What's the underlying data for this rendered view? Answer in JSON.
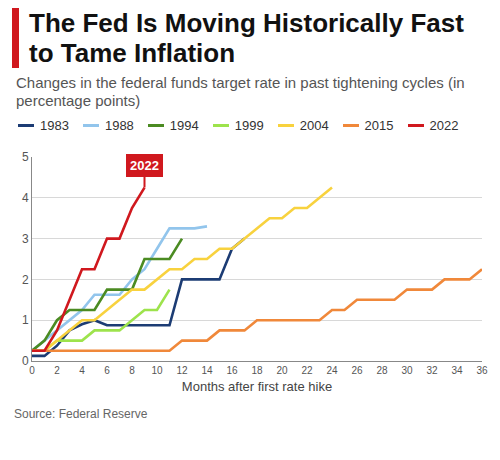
{
  "chart_data": {
    "type": "line",
    "title": "The Fed Is Moving Historically Fast to Tame Inflation",
    "subtitle": "Changes in the federal funds target rate in past tightening cycles (in percentage points)",
    "x_label": "Months after first rate hike",
    "source": "Source: Federal Reserve",
    "xlim": [
      0,
      36
    ],
    "xticks": [
      0,
      2,
      4,
      6,
      8,
      10,
      12,
      14,
      16,
      18,
      20,
      22,
      24,
      26,
      28,
      30,
      32,
      34,
      36
    ],
    "ylim": [
      0,
      5
    ],
    "yticks": [
      0,
      1,
      2,
      3,
      4,
      5
    ],
    "grid": true,
    "legend": "top",
    "series": [
      {
        "name": "1983",
        "color": "#1c3c74",
        "x": [
          0,
          1,
          2,
          3,
          4,
          5,
          6,
          7,
          8,
          9,
          10,
          11,
          12,
          13,
          14,
          15,
          16,
          17
        ],
        "values": [
          0.125,
          0.125,
          0.375,
          0.75,
          0.9,
          1.0,
          0.875,
          0.875,
          0.875,
          0.875,
          0.875,
          0.875,
          2.0,
          2.0,
          2.0,
          2.0,
          2.75,
          3.0
        ]
      },
      {
        "name": "1988",
        "color": "#92c5ec",
        "x": [
          0,
          1,
          2,
          3,
          4,
          5,
          6,
          7,
          8,
          9,
          10,
          11,
          12,
          13,
          14
        ],
        "values": [
          0.25,
          0.5,
          0.75,
          1.0,
          1.25,
          1.625,
          1.625,
          1.625,
          2.0,
          2.25,
          2.75,
          3.25,
          3.25,
          3.25,
          3.3
        ]
      },
      {
        "name": "1994",
        "color": "#4b8b22",
        "x": [
          0,
          1,
          2,
          3,
          4,
          5,
          6,
          7,
          8,
          9,
          10,
          11,
          12
        ],
        "values": [
          0.25,
          0.5,
          1.0,
          1.25,
          1.25,
          1.25,
          1.75,
          1.75,
          1.75,
          2.5,
          2.5,
          2.5,
          3.0
        ]
      },
      {
        "name": "1999",
        "color": "#9de34c",
        "x": [
          0,
          1,
          2,
          3,
          4,
          5,
          6,
          7,
          8,
          9,
          10,
          11
        ],
        "values": [
          0.25,
          0.25,
          0.5,
          0.5,
          0.5,
          0.75,
          0.75,
          0.75,
          1.0,
          1.25,
          1.25,
          1.75
        ]
      },
      {
        "name": "2004",
        "color": "#f8d23e",
        "x": [
          0,
          1,
          2,
          3,
          4,
          5,
          6,
          7,
          8,
          9,
          10,
          11,
          12,
          13,
          14,
          15,
          16,
          17,
          18,
          19,
          20,
          21,
          22,
          23,
          24
        ],
        "values": [
          0.25,
          0.25,
          0.5,
          0.75,
          1.0,
          1.0,
          1.25,
          1.5,
          1.75,
          1.75,
          2.0,
          2.25,
          2.25,
          2.5,
          2.5,
          2.75,
          2.75,
          3.0,
          3.25,
          3.5,
          3.5,
          3.75,
          3.75,
          4.0,
          4.25
        ]
      },
      {
        "name": "2015",
        "color": "#f0883a",
        "x": [
          0,
          1,
          2,
          3,
          4,
          5,
          6,
          7,
          8,
          9,
          10,
          11,
          12,
          13,
          14,
          15,
          16,
          17,
          18,
          19,
          20,
          21,
          22,
          23,
          24,
          25,
          26,
          27,
          28,
          29,
          30,
          31,
          32,
          33,
          34,
          35,
          36
        ],
        "values": [
          0.25,
          0.25,
          0.25,
          0.25,
          0.25,
          0.25,
          0.25,
          0.25,
          0.25,
          0.25,
          0.25,
          0.25,
          0.5,
          0.5,
          0.5,
          0.75,
          0.75,
          0.75,
          1.0,
          1.0,
          1.0,
          1.0,
          1.0,
          1.0,
          1.25,
          1.25,
          1.5,
          1.5,
          1.5,
          1.5,
          1.75,
          1.75,
          1.75,
          2.0,
          2.0,
          2.0,
          2.25
        ]
      },
      {
        "name": "2022",
        "color": "#d0181e",
        "x": [
          0,
          1,
          2,
          3,
          4,
          5,
          6,
          7,
          8,
          9
        ],
        "values": [
          0.25,
          0.25,
          0.75,
          1.5,
          2.25,
          2.25,
          3.0,
          3.0,
          3.75,
          4.25
        ]
      }
    ],
    "annotations": [
      {
        "text": "2022",
        "series": "2022"
      }
    ]
  }
}
